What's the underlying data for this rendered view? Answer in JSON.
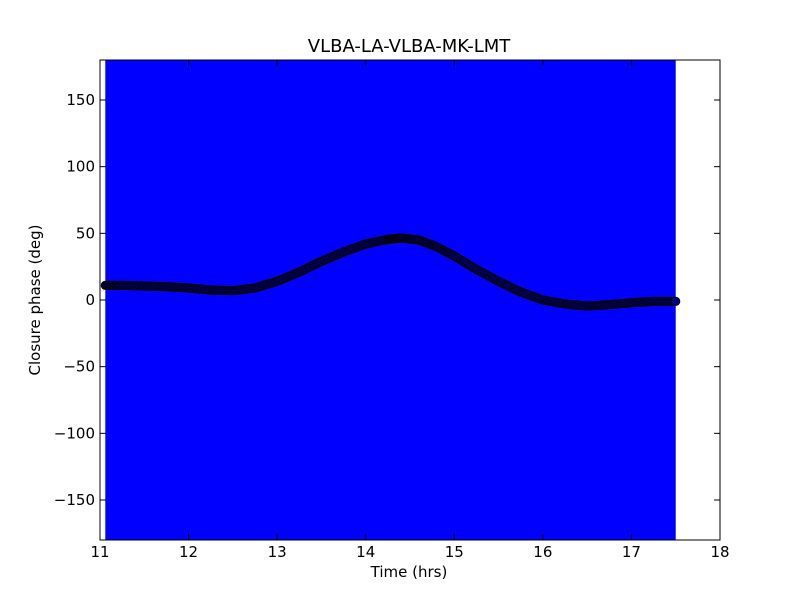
{
  "chart_data": {
    "type": "scatter",
    "title": "VLBA-LA-VLBA-MK-LMT",
    "xlabel": "Time (hrs)",
    "ylabel": "Closure phase (deg)",
    "xlim": [
      11,
      18
    ],
    "ylim": [
      -180,
      180
    ],
    "xticks": [
      "11",
      "12",
      "13",
      "14",
      "15",
      "16",
      "17",
      "18"
    ],
    "yticks": [
      "−150",
      "−100",
      "−50",
      "0",
      "50",
      "100",
      "150"
    ],
    "grid": false,
    "error_band": {
      "x_start": 11.06,
      "x_end": 17.5,
      "color": "#0000ff",
      "y_span": [
        -180,
        180
      ]
    },
    "series": [
      {
        "marker_color": "#000080",
        "x": [
          11.06,
          11.25,
          11.5,
          11.75,
          12.0,
          12.25,
          12.5,
          12.75,
          13.0,
          13.25,
          13.5,
          13.75,
          14.0,
          14.25,
          14.4,
          14.6,
          14.8,
          15.0,
          15.25,
          15.5,
          15.75,
          16.0,
          16.25,
          16.5,
          16.75,
          17.0,
          17.25,
          17.5
        ],
        "y": [
          11,
          11,
          10.5,
          10,
          9,
          7.5,
          7,
          9,
          14,
          21,
          29,
          36,
          42,
          45.5,
          46.5,
          45,
          40,
          33,
          23,
          14,
          6,
          0,
          -3,
          -4.5,
          -3.5,
          -2,
          -1,
          -1
        ]
      }
    ]
  }
}
